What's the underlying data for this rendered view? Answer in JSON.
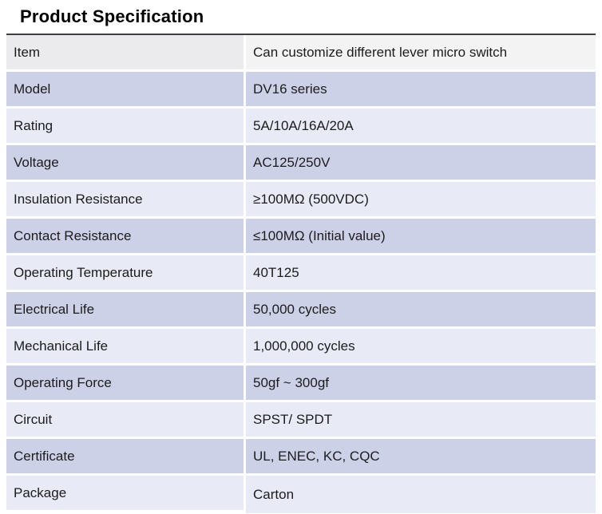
{
  "page": {
    "title": "Product Specification"
  },
  "colors": {
    "top_border": "#3e3e3e",
    "header_item_bg": "#ebebed",
    "header_value_bg": "#f3f3f4",
    "row_dark_bg": "#cdd1e8",
    "row_light_bg": "#e8eaf5",
    "row_gap": "#ffffff",
    "text": "#1c1c1c"
  },
  "table": {
    "header": {
      "label": "Item",
      "value": "Can customize different lever micro switch"
    },
    "rows": [
      {
        "label": "Model",
        "value": "DV16 series"
      },
      {
        "label": "Rating",
        "value": "5A/10A/16A/20A"
      },
      {
        "label": "Voltage",
        "value": "AC125/250V"
      },
      {
        "label": "Insulation Resistance",
        "value": "≥100MΩ (500VDC)"
      },
      {
        "label": "Contact Resistance",
        "value": "≤100MΩ (Initial value)"
      },
      {
        "label": "Operating Temperature",
        "value": "40T125"
      },
      {
        "label": "Electrical Life",
        "value": "50,000 cycles"
      },
      {
        "label": "Mechanical Life",
        "value": "1,000,000 cycles"
      },
      {
        "label": "Operating Force",
        "value": "50gf ~ 300gf"
      },
      {
        "label": "Circuit",
        "value": "SPST/ SPDT"
      },
      {
        "label": "Certificate",
        "value": "UL, ENEC, KC, CQC"
      },
      {
        "label": "Package",
        "value": "Carton"
      }
    ]
  }
}
